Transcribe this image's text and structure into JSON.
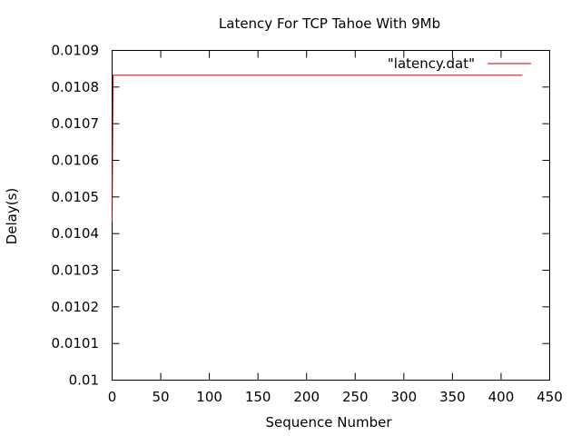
{
  "chart_data": {
    "type": "line",
    "title": "Latency For TCP Tahoe With 9Mb",
    "xlabel": "Sequence Number",
    "ylabel": "Delay(s)",
    "xlim": [
      0,
      450
    ],
    "ylim": [
      0.01,
      0.0109
    ],
    "x_ticks": [
      "0",
      "50",
      "100",
      "150",
      "200",
      "250",
      "300",
      "350",
      "400",
      "450"
    ],
    "y_ticks": [
      "0.01",
      "0.0101",
      "0.0102",
      "0.0103",
      "0.0104",
      "0.0105",
      "0.0106",
      "0.0107",
      "0.0108",
      "0.0109"
    ],
    "grid": false,
    "legend_position": "top-right",
    "series": [
      {
        "name": "\"latency.dat\"",
        "color": "#cc0000",
        "x": [
          0,
          1,
          2,
          3,
          422
        ],
        "y": [
          0.010434,
          0.010832,
          0.010832,
          0.010832,
          0.010832
        ]
      }
    ]
  }
}
